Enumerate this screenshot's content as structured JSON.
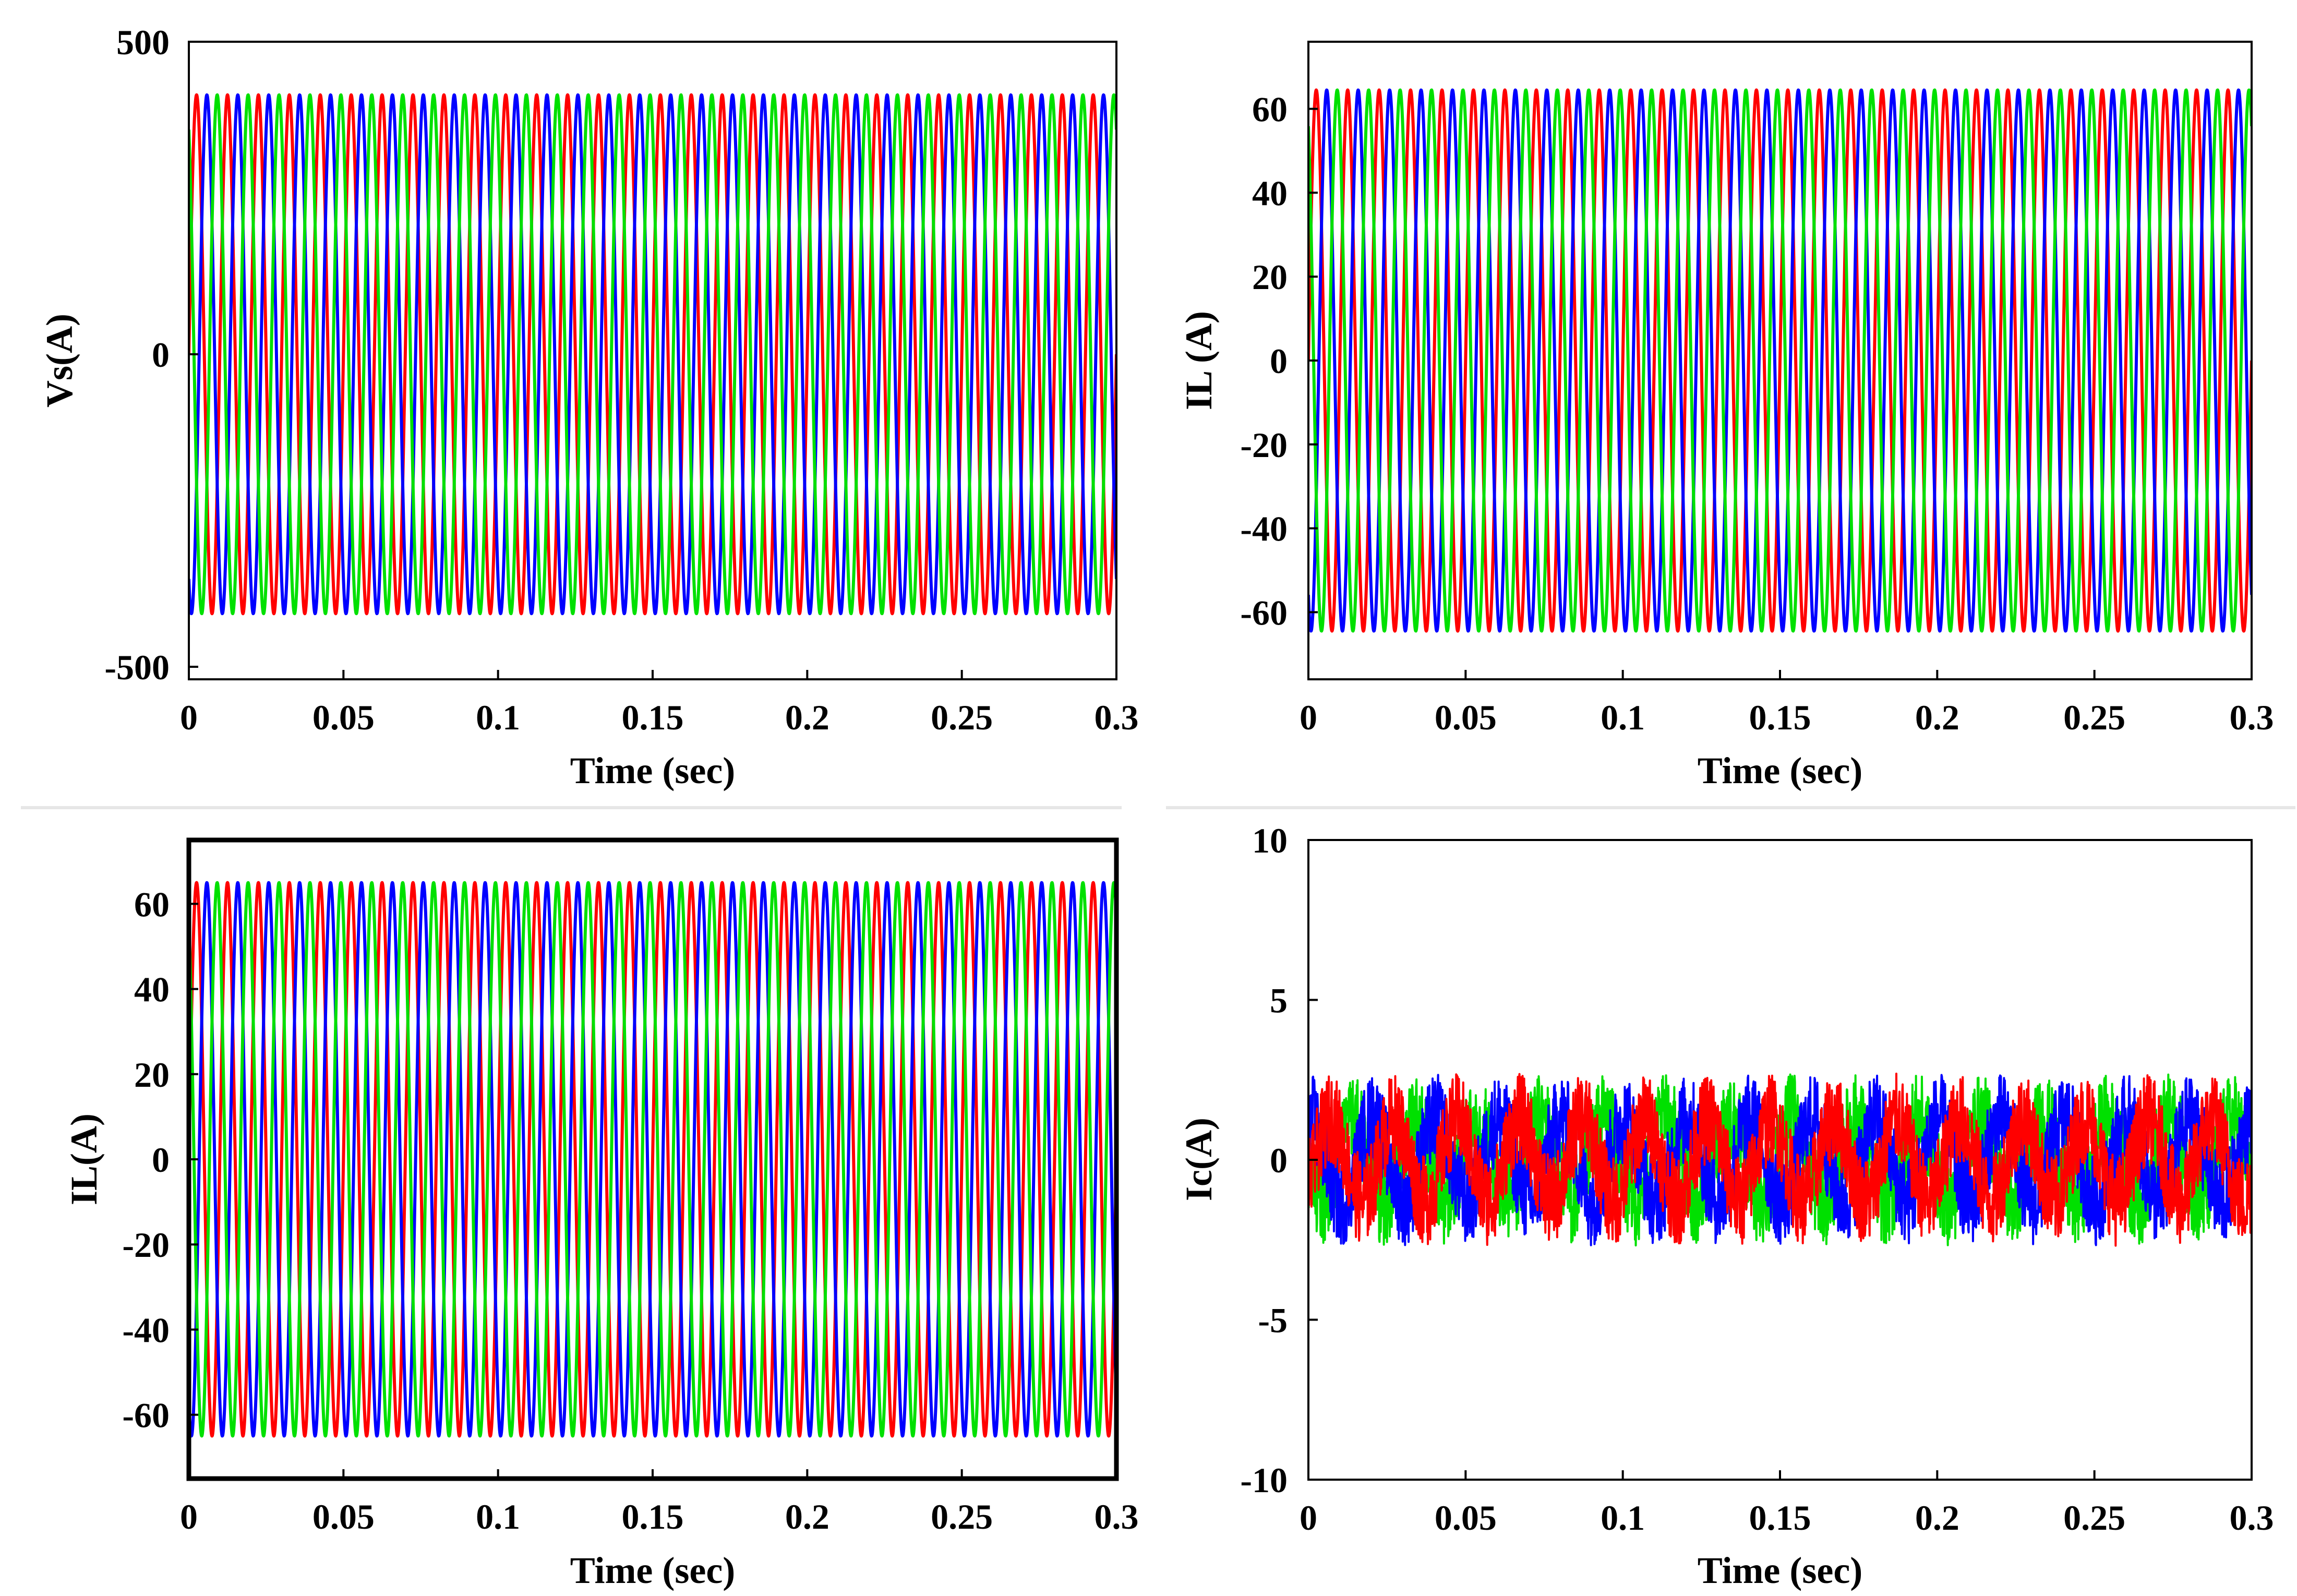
{
  "colors": {
    "phase_a": "#ff0000",
    "phase_b": "#0000ff",
    "phase_c": "#00e000",
    "axes": "#000000",
    "separator": "#e8e8e8"
  },
  "chart_data": [
    {
      "type": "line",
      "xlabel": "Time (sec)",
      "ylabel": "Vs(A)",
      "xlim": [
        0,
        0.3
      ],
      "ylim": [
        -520,
        500
      ],
      "xticks": [
        "0",
        "0.05",
        "0.1",
        "0.15",
        "0.2",
        "0.25",
        "0.3"
      ],
      "yticks": [
        {
          "value": 500,
          "label": "500"
        },
        {
          "value": 0,
          "label": "0"
        },
        {
          "value": -500,
          "label": "-500"
        }
      ],
      "frequency_hz": 100,
      "series": [
        {
          "color": "#ff0000",
          "amplitude": 415,
          "phase_deg": 0
        },
        {
          "color": "#0000ff",
          "amplitude": 415,
          "phase_deg": -120
        },
        {
          "color": "#00e000",
          "amplitude": 415,
          "phase_deg": 120
        }
      ],
      "grid": false,
      "legend": "none",
      "frame": "thin"
    },
    {
      "type": "line",
      "xlabel": "Time (sec)",
      "ylabel": "IL (A)",
      "xlim": [
        0,
        0.3
      ],
      "ylim": [
        -76,
        76
      ],
      "xticks": [
        "0",
        "0.05",
        "0.1",
        "0.15",
        "0.2",
        "0.25",
        "0.3"
      ],
      "yticks": [
        {
          "value": 60,
          "label": "60"
        },
        {
          "value": 40,
          "label": "40"
        },
        {
          "value": 20,
          "label": "20"
        },
        {
          "value": 0,
          "label": "0"
        },
        {
          "value": -20,
          "label": "-20"
        },
        {
          "value": -40,
          "label": "-40"
        },
        {
          "value": -60,
          "label": "-60"
        }
      ],
      "frequency_hz": 100,
      "series": [
        {
          "color": "#ff0000",
          "amplitude": 64.5,
          "phase_deg": 0
        },
        {
          "color": "#0000ff",
          "amplitude": 64.5,
          "phase_deg": -120
        },
        {
          "color": "#00e000",
          "amplitude": 64.5,
          "phase_deg": 120
        }
      ],
      "grid": false,
      "legend": "none",
      "frame": "thin"
    },
    {
      "type": "line",
      "xlabel": "Time (sec)",
      "ylabel": "IL(A)",
      "xlim": [
        0,
        0.3
      ],
      "ylim": [
        -75,
        75
      ],
      "xticks": [
        "0",
        "0.05",
        "0.1",
        "0.15",
        "0.2",
        "0.25",
        "0.3"
      ],
      "yticks": [
        {
          "value": 60,
          "label": "60"
        },
        {
          "value": 40,
          "label": "40"
        },
        {
          "value": 20,
          "label": "20"
        },
        {
          "value": 0,
          "label": "0"
        },
        {
          "value": -20,
          "label": "-20"
        },
        {
          "value": -40,
          "label": "-40"
        },
        {
          "value": -60,
          "label": "-60"
        }
      ],
      "frequency_hz": 100,
      "series": [
        {
          "color": "#ff0000",
          "amplitude": 65,
          "phase_deg": 0
        },
        {
          "color": "#0000ff",
          "amplitude": 65,
          "phase_deg": -120
        },
        {
          "color": "#00e000",
          "amplitude": 65,
          "phase_deg": 120
        }
      ],
      "grid": false,
      "legend": "none",
      "frame": "thick"
    },
    {
      "type": "line",
      "xlabel": "Time (sec)",
      "ylabel": "Ic(A)",
      "xlim": [
        0,
        0.3
      ],
      "ylim": [
        -10,
        10
      ],
      "xticks": [
        "0",
        "0.05",
        "0.1",
        "0.15",
        "0.2",
        "0.25",
        "0.3"
      ],
      "yticks": [
        {
          "value": 10,
          "label": "10"
        },
        {
          "value": 5,
          "label": "5"
        },
        {
          "value": 0,
          "label": "0"
        },
        {
          "value": -5,
          "label": "-5"
        },
        {
          "value": -10,
          "label": "-10"
        }
      ],
      "frequency_hz": 50,
      "noise_amplitude": 1.4,
      "series": [
        {
          "color": "#00e000",
          "amplitude": 1.3,
          "phase_deg": 200
        },
        {
          "color": "#0000ff",
          "amplitude": 1.3,
          "phase_deg": 80
        },
        {
          "color": "#ff0000",
          "amplitude": 1.3,
          "phase_deg": -40
        }
      ],
      "grid": false,
      "legend": "none",
      "frame": "thin"
    }
  ]
}
